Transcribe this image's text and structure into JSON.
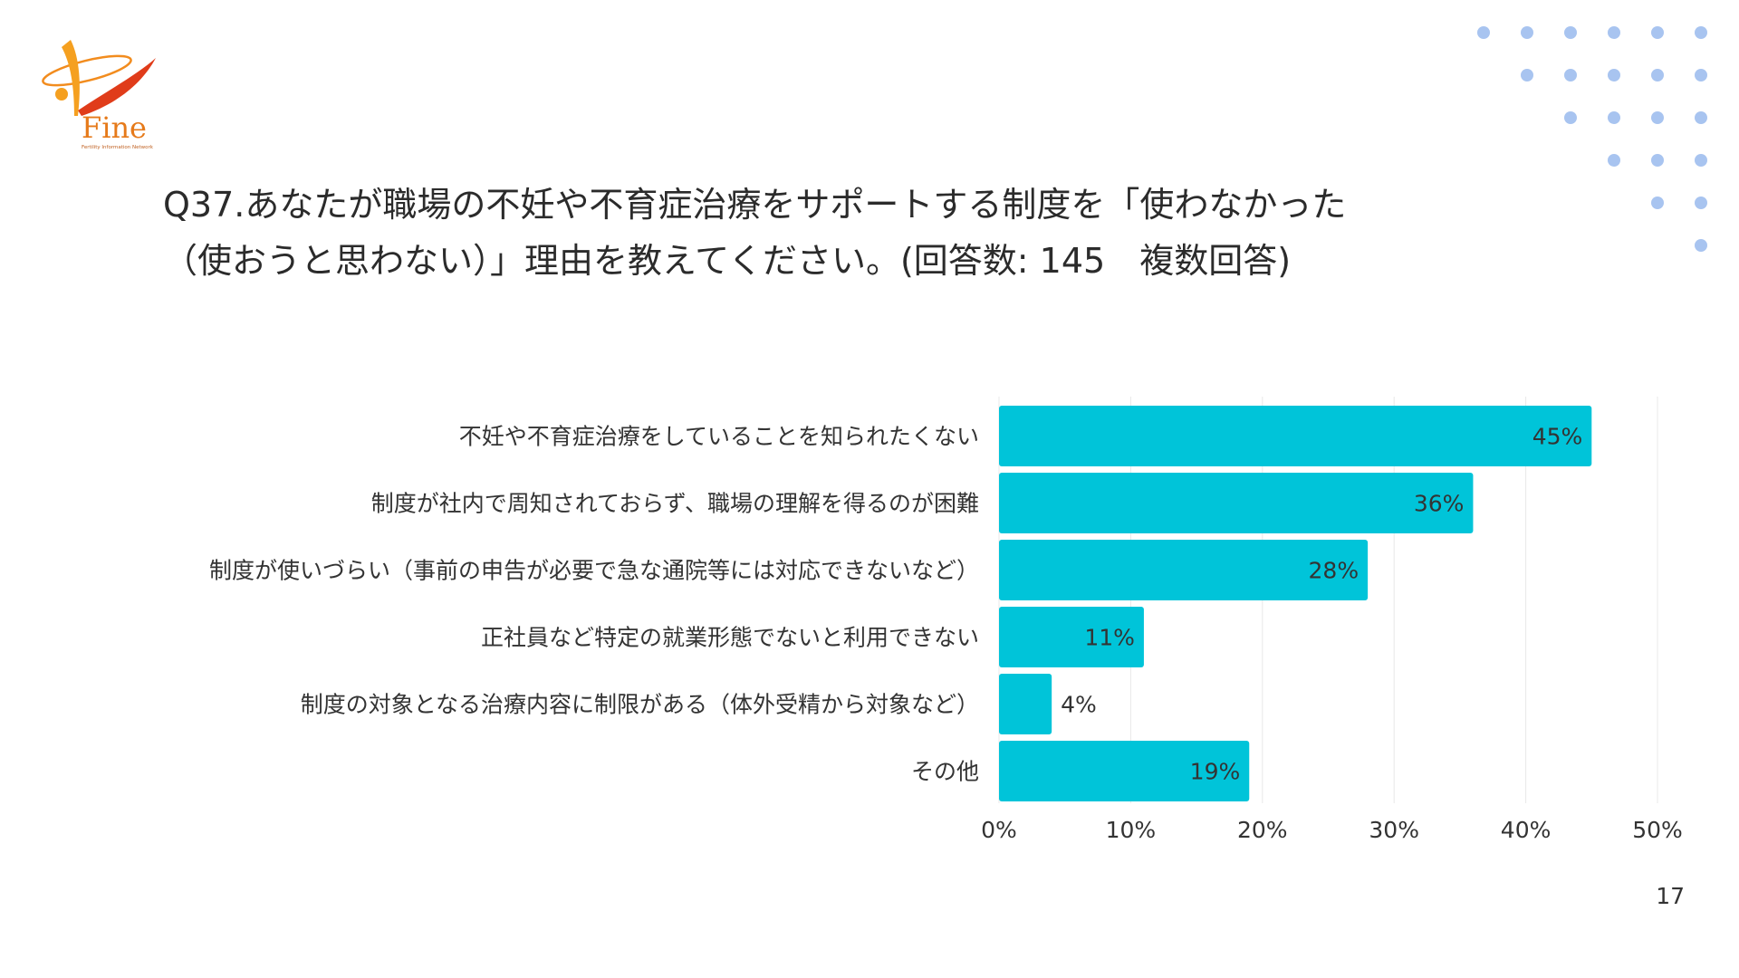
{
  "logo": {
    "text": "Fine",
    "tagline": "Fertility Information Network",
    "icon": "fine-logo-icon"
  },
  "title": {
    "line1": "Q37.あなたが職場の不妊や不育症治療をサポートする制度を「使わなかった",
    "line2": "（使おうと思わない）」理由を教えてください。(回答数: 145　複数回答)"
  },
  "chart_data": {
    "type": "bar",
    "orientation": "horizontal",
    "categories": [
      "不妊や不育症治療をしていることを知られたくない",
      "制度が社内で周知されておらず、職場の理解を得るのが困難",
      "制度が使いづらい（事前の申告が必要で急な通院等には対応できないなど）",
      "正社員など特定の就業形態でないと利用できない",
      "制度の対象となる治療内容に制限がある（体外受精から対象など）",
      "その他"
    ],
    "values": [
      45,
      36,
      28,
      11,
      4,
      19
    ],
    "value_labels": [
      "45%",
      "36%",
      "28%",
      "11%",
      "4%",
      "19%"
    ],
    "xlim": [
      0,
      50
    ],
    "ticks": [
      0,
      10,
      20,
      30,
      40,
      50
    ],
    "tick_labels": [
      "0%",
      "10%",
      "20%",
      "30%",
      "40%",
      "50%"
    ],
    "grid": true,
    "legend": "none",
    "bar_color": "#00c4d9"
  },
  "page_number": "17",
  "colors": {
    "dots": "#a8c4f0",
    "logo_orange": "#f28c1e",
    "logo_red": "#e03c1a"
  }
}
